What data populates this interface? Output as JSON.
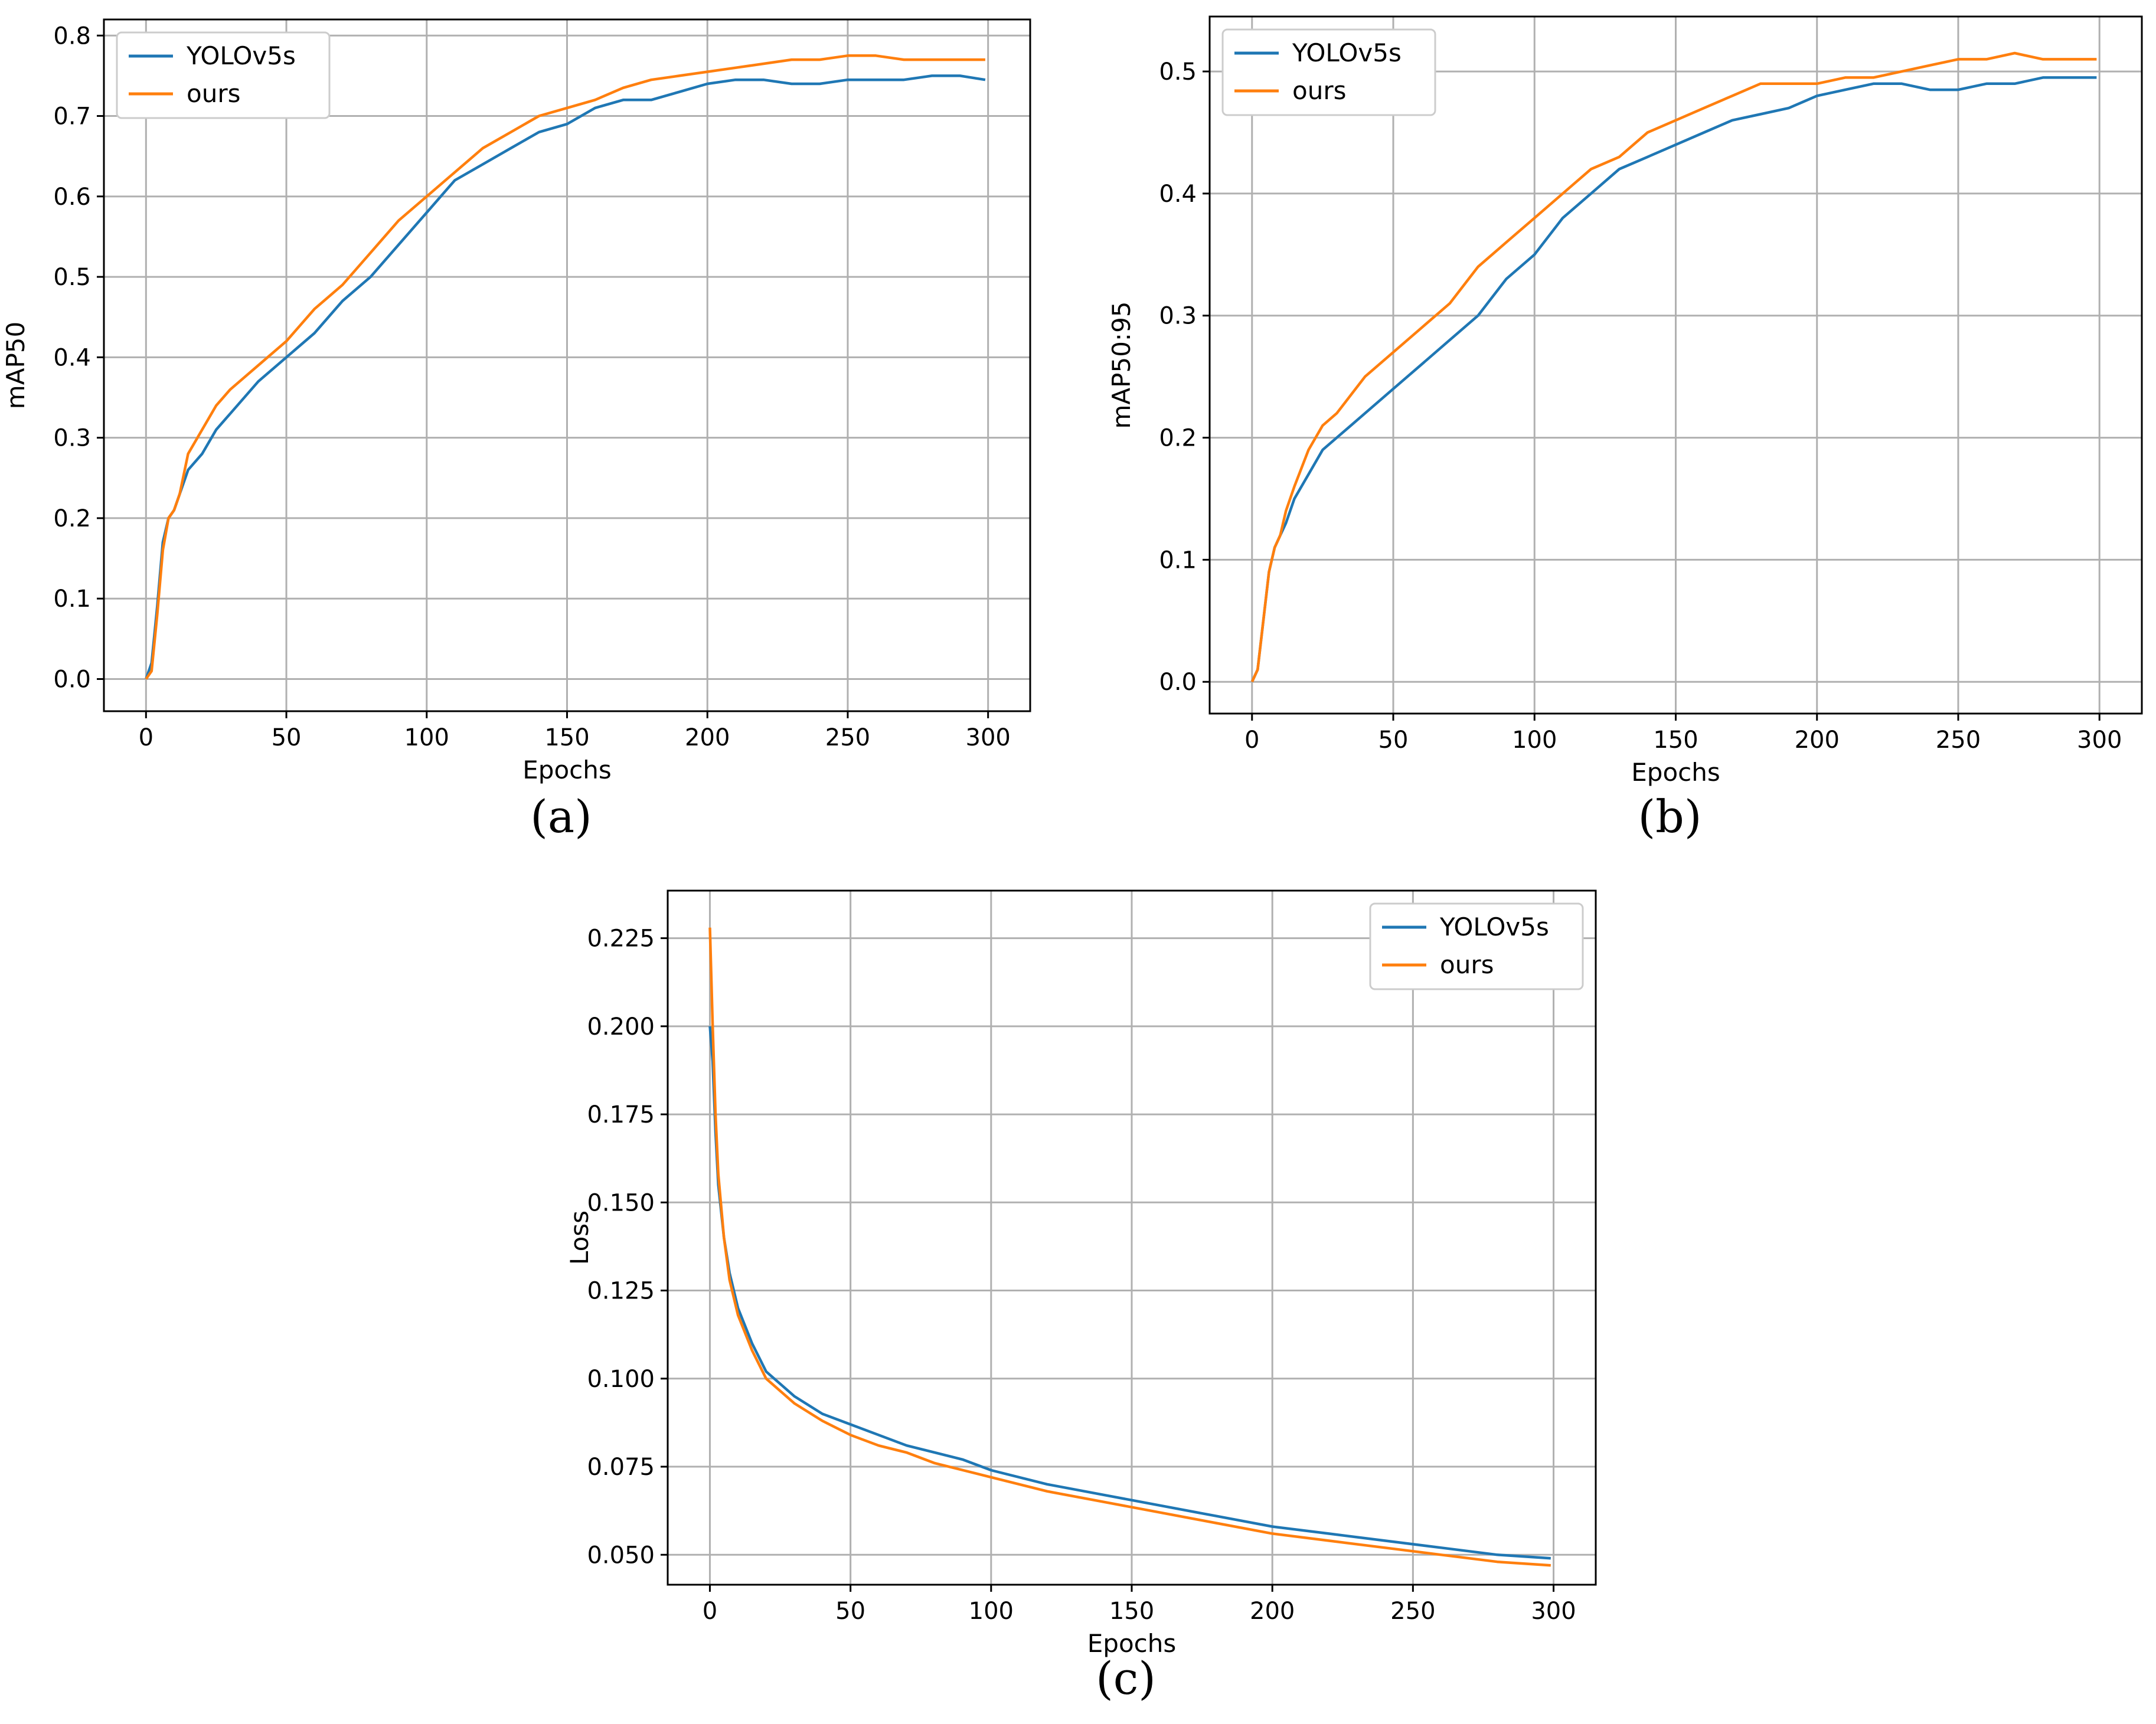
{
  "colors": {
    "yolo": "#1f77b4",
    "ours": "#ff7f0e",
    "grid": "#b0b0b0"
  },
  "chart_data": [
    {
      "id": "a",
      "type": "line",
      "panel_label": "(a)",
      "title": "",
      "xlabel": "Epochs",
      "ylabel": "mAP50",
      "xlim": [
        -15,
        315
      ],
      "ylim": [
        -0.04,
        0.82
      ],
      "xticks": [
        0,
        50,
        100,
        150,
        200,
        250,
        300
      ],
      "xtick_labels": [
        "0",
        "50",
        "100",
        "150",
        "200",
        "250",
        "300"
      ],
      "yticks": [
        0.0,
        0.1,
        0.2,
        0.3,
        0.4,
        0.5,
        0.6,
        0.7,
        0.8
      ],
      "ytick_labels": [
        "0.0",
        "0.1",
        "0.2",
        "0.3",
        "0.4",
        "0.5",
        "0.6",
        "0.7",
        "0.8"
      ],
      "grid": true,
      "legend_loc": "upper-left",
      "series": [
        {
          "name": "YOLOv5s",
          "color": "#1f77b4",
          "x": [
            0,
            2,
            4,
            6,
            8,
            10,
            12,
            15,
            20,
            25,
            30,
            40,
            50,
            60,
            70,
            80,
            90,
            100,
            110,
            120,
            130,
            140,
            150,
            160,
            170,
            180,
            190,
            200,
            210,
            220,
            230,
            240,
            250,
            260,
            270,
            280,
            290,
            299
          ],
          "y": [
            0.0,
            0.02,
            0.09,
            0.17,
            0.2,
            0.21,
            0.23,
            0.26,
            0.28,
            0.31,
            0.33,
            0.37,
            0.4,
            0.43,
            0.47,
            0.5,
            0.54,
            0.58,
            0.62,
            0.64,
            0.66,
            0.68,
            0.69,
            0.71,
            0.72,
            0.72,
            0.73,
            0.74,
            0.745,
            0.745,
            0.74,
            0.74,
            0.745,
            0.745,
            0.745,
            0.75,
            0.75,
            0.745
          ]
        },
        {
          "name": "ours",
          "color": "#ff7f0e",
          "x": [
            0,
            2,
            4,
            6,
            8,
            10,
            12,
            15,
            20,
            25,
            30,
            40,
            50,
            60,
            70,
            80,
            90,
            100,
            110,
            120,
            130,
            140,
            150,
            160,
            170,
            180,
            190,
            200,
            210,
            220,
            230,
            240,
            250,
            260,
            270,
            280,
            290,
            299
          ],
          "y": [
            0.0,
            0.01,
            0.08,
            0.16,
            0.2,
            0.21,
            0.23,
            0.28,
            0.31,
            0.34,
            0.36,
            0.39,
            0.42,
            0.46,
            0.49,
            0.53,
            0.57,
            0.6,
            0.63,
            0.66,
            0.68,
            0.7,
            0.71,
            0.72,
            0.735,
            0.745,
            0.75,
            0.755,
            0.76,
            0.765,
            0.77,
            0.77,
            0.775,
            0.775,
            0.77,
            0.77,
            0.77,
            0.77
          ]
        }
      ]
    },
    {
      "id": "b",
      "type": "line",
      "panel_label": "(b)",
      "title": "",
      "xlabel": "Epochs",
      "ylabel": "mAP50:95",
      "xlim": [
        -15,
        315
      ],
      "ylim": [
        -0.026,
        0.545
      ],
      "xticks": [
        0,
        50,
        100,
        150,
        200,
        250,
        300
      ],
      "xtick_labels": [
        "0",
        "50",
        "100",
        "150",
        "200",
        "250",
        "300"
      ],
      "yticks": [
        0.0,
        0.1,
        0.2,
        0.3,
        0.4,
        0.5
      ],
      "ytick_labels": [
        "0.0",
        "0.1",
        "0.2",
        "0.3",
        "0.4",
        "0.5"
      ],
      "grid": true,
      "legend_loc": "upper-left",
      "series": [
        {
          "name": "YOLOv5s",
          "color": "#1f77b4",
          "x": [
            0,
            2,
            4,
            6,
            8,
            10,
            12,
            15,
            20,
            25,
            30,
            40,
            50,
            60,
            70,
            80,
            90,
            100,
            110,
            120,
            130,
            140,
            150,
            160,
            170,
            180,
            190,
            200,
            210,
            220,
            230,
            240,
            250,
            260,
            270,
            280,
            290,
            299
          ],
          "y": [
            0.0,
            0.01,
            0.05,
            0.09,
            0.11,
            0.12,
            0.13,
            0.15,
            0.17,
            0.19,
            0.2,
            0.22,
            0.24,
            0.26,
            0.28,
            0.3,
            0.33,
            0.35,
            0.38,
            0.4,
            0.42,
            0.43,
            0.44,
            0.45,
            0.46,
            0.465,
            0.47,
            0.48,
            0.485,
            0.49,
            0.49,
            0.485,
            0.485,
            0.49,
            0.49,
            0.495,
            0.495,
            0.495
          ]
        },
        {
          "name": "ours",
          "color": "#ff7f0e",
          "x": [
            0,
            2,
            4,
            6,
            8,
            10,
            12,
            15,
            20,
            25,
            30,
            40,
            50,
            60,
            70,
            80,
            90,
            100,
            110,
            120,
            130,
            140,
            150,
            160,
            170,
            180,
            190,
            200,
            210,
            220,
            230,
            240,
            250,
            260,
            270,
            280,
            290,
            299
          ],
          "y": [
            0.0,
            0.01,
            0.05,
            0.09,
            0.11,
            0.12,
            0.14,
            0.16,
            0.19,
            0.21,
            0.22,
            0.25,
            0.27,
            0.29,
            0.31,
            0.34,
            0.36,
            0.38,
            0.4,
            0.42,
            0.43,
            0.45,
            0.46,
            0.47,
            0.48,
            0.49,
            0.49,
            0.49,
            0.495,
            0.495,
            0.5,
            0.505,
            0.51,
            0.51,
            0.515,
            0.51,
            0.51,
            0.51
          ]
        }
      ]
    },
    {
      "id": "c",
      "type": "line",
      "panel_label": "(c)",
      "title": "",
      "xlabel": "Epochs",
      "ylabel": "Loss",
      "xlim": [
        -15,
        315
      ],
      "ylim": [
        0.0415,
        0.2385
      ],
      "xticks": [
        0,
        50,
        100,
        150,
        200,
        250,
        300
      ],
      "xtick_labels": [
        "0",
        "50",
        "100",
        "150",
        "200",
        "250",
        "300"
      ],
      "yticks": [
        0.05,
        0.075,
        0.1,
        0.125,
        0.15,
        0.175,
        0.2,
        0.225
      ],
      "ytick_labels": [
        "0.050",
        "0.075",
        "0.100",
        "0.125",
        "0.150",
        "0.175",
        "0.200",
        "0.225"
      ],
      "grid": true,
      "legend_loc": "upper-right",
      "series": [
        {
          "name": "YOLOv5s",
          "color": "#1f77b4",
          "x": [
            0,
            1,
            2,
            3,
            5,
            7,
            10,
            15,
            20,
            30,
            40,
            50,
            60,
            70,
            80,
            90,
            100,
            120,
            140,
            160,
            180,
            200,
            220,
            240,
            260,
            280,
            299
          ],
          "y": [
            0.2,
            0.19,
            0.17,
            0.155,
            0.14,
            0.13,
            0.12,
            0.11,
            0.102,
            0.095,
            0.09,
            0.087,
            0.084,
            0.081,
            0.079,
            0.077,
            0.074,
            0.07,
            0.067,
            0.064,
            0.061,
            0.058,
            0.056,
            0.054,
            0.052,
            0.05,
            0.049
          ]
        },
        {
          "name": "ours",
          "color": "#ff7f0e",
          "x": [
            0,
            1,
            2,
            3,
            5,
            7,
            10,
            15,
            20,
            30,
            40,
            50,
            60,
            70,
            80,
            90,
            100,
            120,
            140,
            160,
            180,
            200,
            220,
            240,
            260,
            280,
            299
          ],
          "y": [
            0.228,
            0.2,
            0.175,
            0.158,
            0.14,
            0.128,
            0.118,
            0.108,
            0.1,
            0.093,
            0.088,
            0.084,
            0.081,
            0.079,
            0.076,
            0.074,
            0.072,
            0.068,
            0.065,
            0.062,
            0.059,
            0.056,
            0.054,
            0.052,
            0.05,
            0.048,
            0.047
          ]
        }
      ]
    }
  ]
}
